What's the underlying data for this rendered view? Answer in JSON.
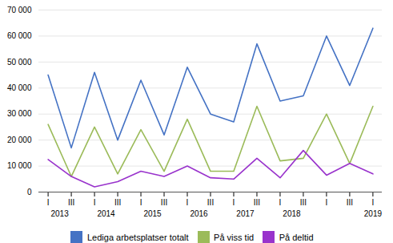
{
  "chart_data": {
    "type": "line",
    "categories": [
      "I",
      "III",
      "I",
      "III",
      "I",
      "III",
      "I",
      "III",
      "I",
      "III",
      "I",
      "III",
      "I",
      "III",
      "I"
    ],
    "series": [
      {
        "name": "Lediga arbetsplatser totalt",
        "color": "#4472C4",
        "values": [
          45000,
          17000,
          46000,
          20000,
          43000,
          22000,
          48000,
          30000,
          27000,
          57000,
          35000,
          37000,
          60000,
          41000,
          63000
        ]
      },
      {
        "name": "På viss tid",
        "color": "#9BBB59",
        "values": [
          26000,
          6000,
          25000,
          7000,
          24000,
          8000,
          28000,
          8000,
          8000,
          33000,
          12000,
          13000,
          30000,
          11000,
          33000
        ]
      },
      {
        "name": "På deltid",
        "color": "#9933CC",
        "values": [
          12500,
          6000,
          2000,
          4000,
          8000,
          6000,
          10000,
          5500,
          5000,
          13000,
          5500,
          16000,
          6500,
          11000,
          7000
        ]
      }
    ],
    "annotations": [
      {
        "text": "2013",
        "x": 0.5
      },
      {
        "text": "2014",
        "x": 2.5
      },
      {
        "text": "2015",
        "x": 4.5
      },
      {
        "text": "2016",
        "x": 6.5
      },
      {
        "text": "2017",
        "x": 8.5
      },
      {
        "text": "2018",
        "x": 10.5
      },
      {
        "text": "2019",
        "x": 14
      }
    ],
    "ylim": [
      0,
      70000
    ],
    "yticks": [
      0,
      {
        "value": 10000,
        "label": "10 000"
      },
      {
        "value": 20000,
        "label": "20 000"
      },
      {
        "value": 30000,
        "label": "30 000"
      },
      {
        "value": 40000,
        "label": "40 000"
      },
      {
        "value": 50000,
        "label": "50 000"
      },
      {
        "value": 60000,
        "label": "60 000"
      },
      {
        "value": 70000,
        "label": "70 000"
      }
    ],
    "grid": true,
    "legend": "bottom"
  }
}
